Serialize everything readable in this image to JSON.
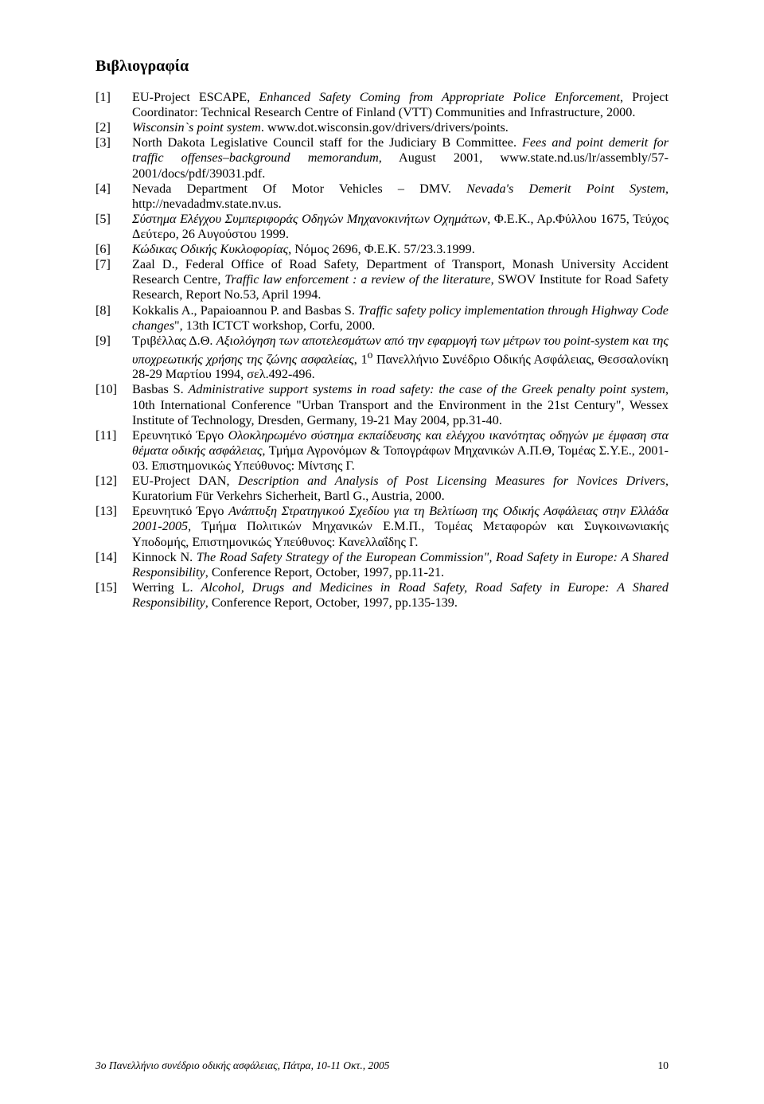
{
  "heading": "Βιβλιογραφία",
  "references": [
    {
      "num": "[1]",
      "body": "EU-Project ESCAPE, <i>Enhanced Safety Coming from Appropriate Police Enforcement</i>, Project Coordinator: Technical Research Centre of Finland (VTT) Communities and Infrastructure, 2000."
    },
    {
      "num": "[2]",
      "body": "<i>Wisconsin`s point system</i>. www.dot.wisconsin.gov/drivers/drivers/points."
    },
    {
      "num": "[3]",
      "body": "North Dakota Legislative Council staff for the Judiciary B Committee. <i>Fees and point demerit for traffic offenses–background memorandum</i>, August 2001, www.state.nd.us/lr/assembly/57-2001/docs/pdf/39031.pdf."
    },
    {
      "num": "[4]",
      "body": "Nevada Department Of Motor Vehicles – DMV. <i>Nevada's Demerit Point System</i>, http://nevadadmv.state.nv.us."
    },
    {
      "num": "[5]",
      "body": "<i>Σύστημα Ελέγχου Συμπεριφοράς Οδηγών Μηχανοκινήτων Οχημάτων</i>, Φ.Ε.Κ., Αρ.Φύλλου 1675, Τεύχος Δεύτερο, 26 Αυγούστου 1999."
    },
    {
      "num": "[6]",
      "body": "<i>Κώδικας Οδικής Κυκλοφορίας</i>, Νόμος 2696, Φ.Ε.Κ. 57/23.3.1999."
    },
    {
      "num": "[7]",
      "body": "Zaal D., Federal Office of Road Safety, Department of Transport, Monash University Accident Research Centre, <i>Traffic law enforcement : a review of the literature</i>, SWOV Institute for Road Safety Research, Report No.53, April 1994."
    },
    {
      "num": "[8]",
      "body": "Kokkalis A., Papaioannou P. and Basbas S. <i>Traffic safety policy implementation through Highway Code changes</i>\", 13th ICTCT workshop, Corfu, 2000."
    },
    {
      "num": "[9]",
      "body": "Τριβέλλας Δ.Θ. <i>Αξιολόγηση των αποτελεσμάτων από την εφαρμογή των μέτρων του point-system και της υποχρεωτικής χρήσης της ζώνης ασφαλείας</i>, 1<sup>ο</sup> Πανελλήνιο Συνέδριο Οδικής Ασφάλειας, Θεσσαλονίκη 28-29 Μαρτίου 1994, σελ.492-496."
    },
    {
      "num": "[10]",
      "body": "Basbas S. <i>Administrative support systems in road safety: the case of the Greek penalty point system</i>, 10th International Conference \"Urban Transport and the Environment in the 21st Century\", Wessex Institute of Technology, Dresden, Germany, 19-21 May 2004, pp.31-40."
    },
    {
      "num": "[11]",
      "body": "Ερευνητικό Έργο <i>Ολοκληρωμένο σύστημα εκπαίδευσης και ελέγχου ικανότητας οδηγών με έμφαση στα θέματα οδικής ασφάλειας</i>, Τμήμα Αγρονόμων & Τοπογράφων Μηχανικών Α.Π.Θ, Τομέας Σ.Υ.Ε., 2001-03. Επιστημονικώς Υπεύθυνος: Μίντσης Γ."
    },
    {
      "num": "[12]",
      "body": "EU-Project DAN, <i>Description and Analysis of Post Licensing Measures for Novices Drivers</i>, Kuratorium Für Verkehrs Sicherheit, Bartl G., Austria, 2000."
    },
    {
      "num": "[13]",
      "body": "Ερευνητικό Έργο <i>Ανάπτυξη Στρατηγικού Σχεδίου για τη Βελτίωση της Οδικής Ασφάλειας στην Ελλάδα 2001-2005</i>, Τμήμα Πολιτικών Μηχανικών Ε.Μ.Π., Τομέας Μεταφορών και Συγκοινωνιακής Υποδομής, Επιστημονικώς Υπεύθυνος: Κανελλαΐδης Γ."
    },
    {
      "num": "[14]",
      "body": "Kinnock N. <i>The Road Safety Strategy of the European Commission\", Road Safety in Europe: A Shared Responsibility</i>, Conference Report, October, 1997, pp.11-21."
    },
    {
      "num": "[15]",
      "body": "Werring L. <i>Alcohol, Drugs and Medicines in Road Safety, Road Safety in Europe: A Shared Responsibility</i>, Conference Report, October, 1997, pp.135-139."
    }
  ],
  "footer": {
    "text": "3ο Πανελλήνιο συνέδριο οδικής ασφάλειας, Πάτρα, 10-11 Οκτ., 2005",
    "page": "10"
  }
}
